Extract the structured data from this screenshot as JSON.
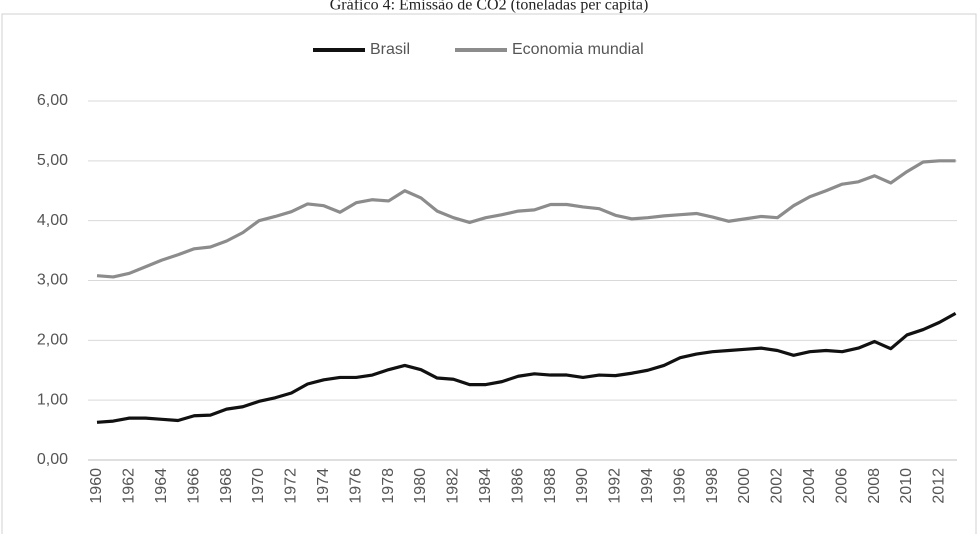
{
  "chart_data": {
    "type": "line",
    "title": "Gráfico 4: Emissão de CO2 (toneladas per capita)",
    "categories": [
      "1960",
      null,
      "1962",
      null,
      "1964",
      null,
      "1966",
      null,
      "1968",
      null,
      "1970",
      null,
      "1972",
      null,
      "1974",
      null,
      "1976",
      null,
      "1978",
      null,
      "1980",
      null,
      "1982",
      null,
      "1984",
      null,
      "1986",
      null,
      "1988",
      null,
      "1990",
      null,
      "1992",
      null,
      "1994",
      null,
      "1996",
      null,
      "1998",
      null,
      "2000",
      null,
      "2002",
      null,
      "2004",
      null,
      "2006",
      null,
      "2008",
      null,
      "2010",
      null,
      "2012",
      null
    ],
    "series": [
      {
        "name": "Brasil",
        "color": "#111111",
        "values": [
          0.63,
          0.65,
          0.7,
          0.7,
          0.68,
          0.66,
          0.74,
          0.75,
          0.85,
          0.89,
          0.98,
          1.04,
          1.12,
          1.27,
          1.34,
          1.38,
          1.38,
          1.42,
          1.51,
          1.58,
          1.51,
          1.37,
          1.35,
          1.26,
          1.26,
          1.31,
          1.4,
          1.44,
          1.42,
          1.42,
          1.38,
          1.42,
          1.41,
          1.45,
          1.5,
          1.58,
          1.71,
          1.77,
          1.81,
          1.83,
          1.85,
          1.87,
          1.83,
          1.75,
          1.81,
          1.83,
          1.81,
          1.87,
          1.98,
          1.86,
          2.09,
          2.18,
          2.3,
          2.45
        ]
      },
      {
        "name": "Economia mundial",
        "color": "#8c8c8c",
        "values": [
          3.08,
          3.06,
          3.12,
          3.23,
          3.34,
          3.43,
          3.53,
          3.56,
          3.66,
          3.8,
          4.0,
          4.07,
          4.15,
          4.28,
          4.25,
          4.14,
          4.3,
          4.35,
          4.33,
          4.5,
          4.38,
          4.16,
          4.05,
          3.97,
          4.05,
          4.1,
          4.16,
          4.18,
          4.27,
          4.27,
          4.23,
          4.2,
          4.09,
          4.03,
          4.05,
          4.08,
          4.1,
          4.12,
          4.06,
          3.99,
          4.03,
          4.07,
          4.05,
          4.25,
          4.4,
          4.5,
          4.61,
          4.65,
          4.75,
          4.63,
          4.82,
          4.98,
          5.0,
          5.0
        ]
      }
    ],
    "ylim": [
      0,
      6
    ],
    "yticks": [
      {
        "value": 0,
        "label": "0,00"
      },
      {
        "value": 1,
        "label": "1,00"
      },
      {
        "value": 2,
        "label": "2,00"
      },
      {
        "value": 3,
        "label": "3,00"
      },
      {
        "value": 4,
        "label": "4,00"
      },
      {
        "value": 5,
        "label": "5,00"
      },
      {
        "value": 6,
        "label": "6,00"
      }
    ],
    "grid": true,
    "legend": "top"
  }
}
